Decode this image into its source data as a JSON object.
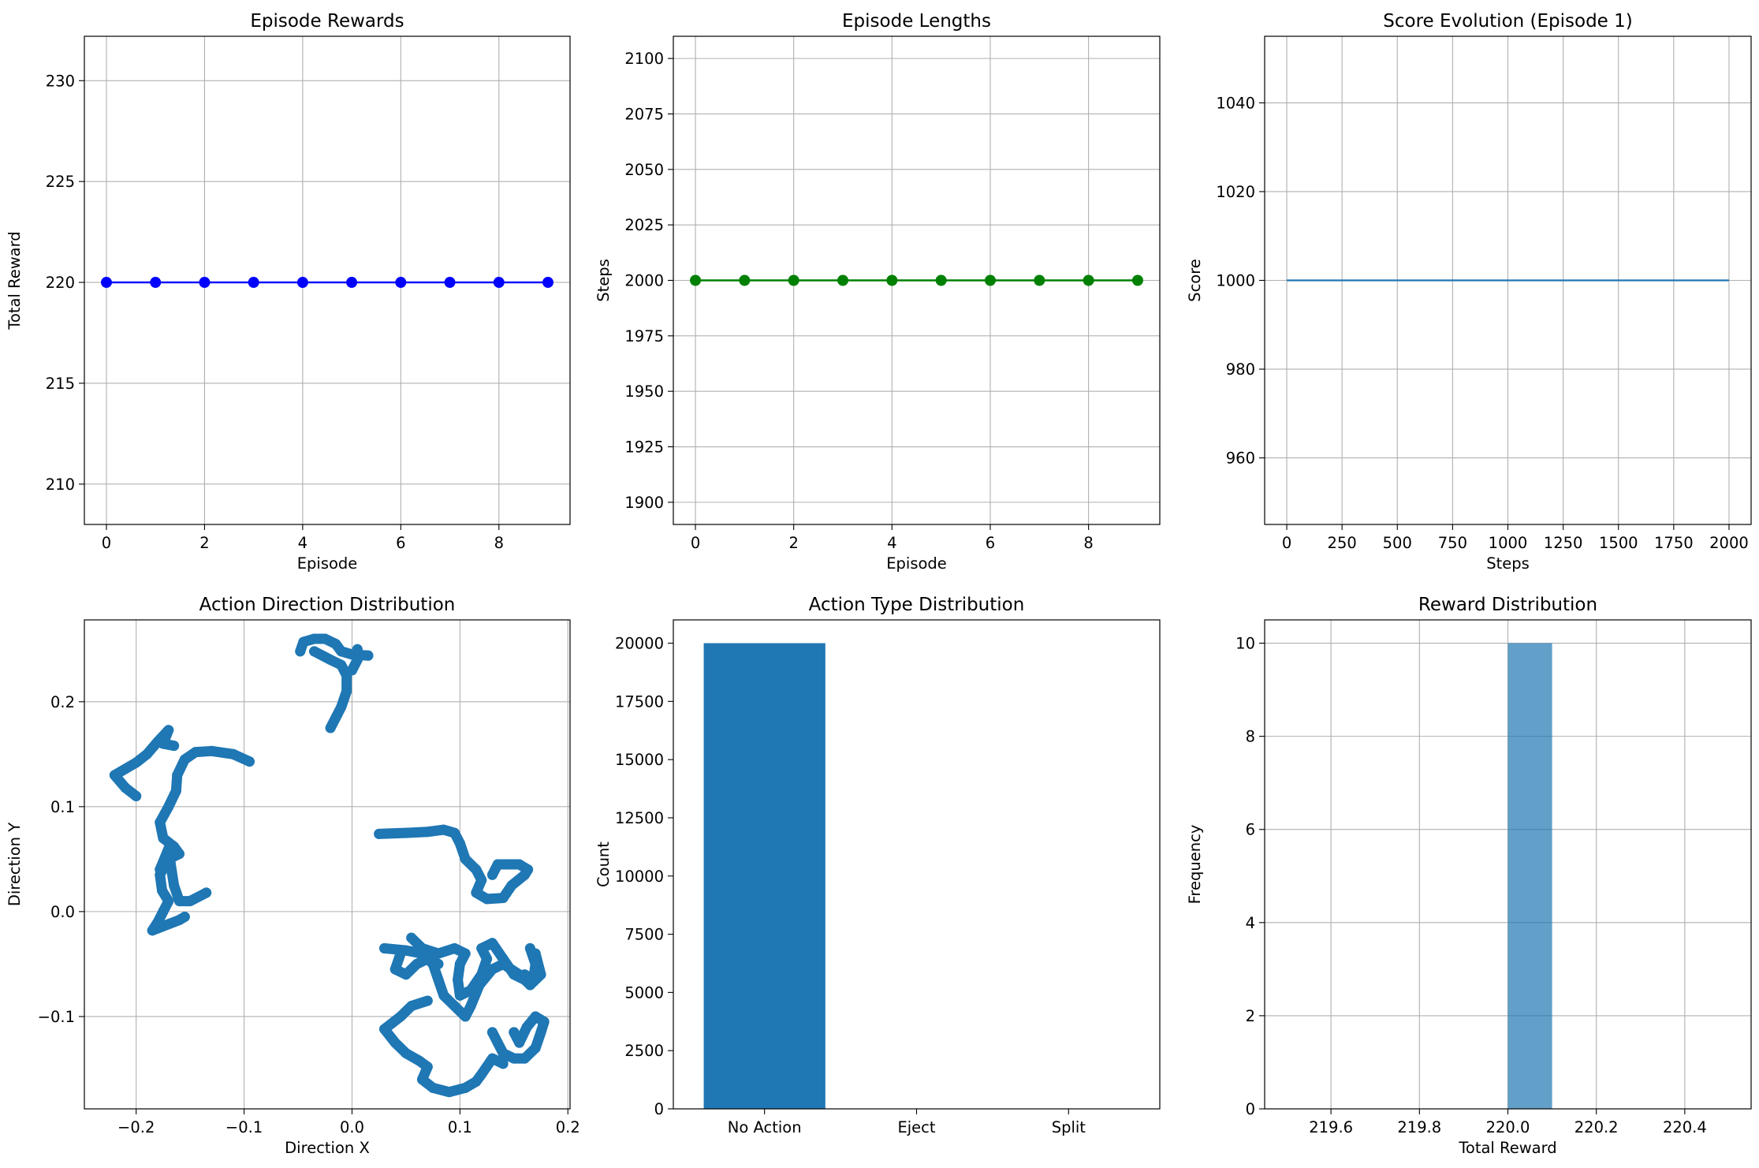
{
  "chart_data": [
    {
      "type": "line",
      "title": "Episode Rewards",
      "xlabel": "Episode",
      "ylabel": "Total Reward",
      "xlim": [
        -0.45,
        9.45
      ],
      "ylim": [
        208,
        232.2
      ],
      "xticks": [
        0,
        2,
        4,
        6,
        8
      ],
      "yticks": [
        210,
        215,
        220,
        225,
        230
      ],
      "grid": true,
      "color": "#0000ff",
      "marker": "circle",
      "x": [
        0,
        1,
        2,
        3,
        4,
        5,
        6,
        7,
        8,
        9
      ],
      "y": [
        220,
        220,
        220,
        220,
        220,
        220,
        220,
        220,
        220,
        220
      ]
    },
    {
      "type": "line",
      "title": "Episode Lengths",
      "xlabel": "Episode",
      "ylabel": "Steps",
      "xlim": [
        -0.45,
        9.45
      ],
      "ylim": [
        1890,
        2110
      ],
      "xticks": [
        0,
        2,
        4,
        6,
        8
      ],
      "yticks": [
        1900,
        1925,
        1950,
        1975,
        2000,
        2025,
        2050,
        2075,
        2100
      ],
      "grid": true,
      "color": "#008000",
      "marker": "circle",
      "x": [
        0,
        1,
        2,
        3,
        4,
        5,
        6,
        7,
        8,
        9
      ],
      "y": [
        2000,
        2000,
        2000,
        2000,
        2000,
        2000,
        2000,
        2000,
        2000,
        2000
      ]
    },
    {
      "type": "line",
      "title": "Score Evolution (Episode 1)",
      "xlabel": "Steps",
      "ylabel": "Score",
      "xlim": [
        -100,
        2100
      ],
      "ylim": [
        945,
        1055
      ],
      "xticks": [
        0,
        250,
        500,
        750,
        1000,
        1250,
        1500,
        1750,
        2000
      ],
      "yticks": [
        960,
        980,
        1000,
        1020,
        1040
      ],
      "grid": true,
      "color": "#1f77b4",
      "x": [
        0,
        2000
      ],
      "y": [
        1000,
        1000
      ]
    },
    {
      "type": "scatter",
      "title": "Action Direction Distribution",
      "xlabel": "Direction X",
      "ylabel": "Direction Y",
      "xlim": [
        -0.248,
        0.202
      ],
      "ylim": [
        -0.188,
        0.278
      ],
      "xticks": [
        -0.2,
        -0.1,
        0.0,
        0.1,
        0.2
      ],
      "yticks": [
        -0.1,
        0.0,
        0.1,
        0.2
      ],
      "tick_labels_x": [
        "−0.2",
        "−0.1",
        "0.0",
        "0.1",
        "0.2"
      ],
      "tick_labels_y": [
        "−0.1",
        "0.0",
        "0.1",
        "0.2"
      ],
      "grid": true,
      "color": "#1f77b4",
      "paths": [
        [
          [
            -0.2,
            0.11
          ],
          [
            -0.21,
            0.118
          ],
          [
            -0.22,
            0.13
          ],
          [
            -0.2,
            0.142
          ],
          [
            -0.19,
            0.15
          ],
          [
            -0.18,
            0.162
          ],
          [
            -0.17,
            0.173
          ],
          [
            -0.175,
            0.16
          ],
          [
            -0.165,
            0.158
          ]
        ],
        [
          [
            -0.095,
            0.143
          ],
          [
            -0.11,
            0.15
          ],
          [
            -0.13,
            0.153
          ],
          [
            -0.145,
            0.152
          ],
          [
            -0.155,
            0.145
          ],
          [
            -0.162,
            0.13
          ],
          [
            -0.163,
            0.115
          ],
          [
            -0.17,
            0.1
          ],
          [
            -0.178,
            0.085
          ],
          [
            -0.175,
            0.07
          ],
          [
            -0.165,
            0.062
          ],
          [
            -0.16,
            0.055
          ],
          [
            -0.17,
            0.05
          ],
          [
            -0.178,
            0.035
          ],
          [
            -0.176,
            0.02
          ],
          [
            -0.17,
            0.01
          ],
          [
            -0.175,
            0.0
          ],
          [
            -0.18,
            -0.01
          ],
          [
            -0.185,
            -0.018
          ],
          [
            -0.17,
            -0.012
          ],
          [
            -0.16,
            -0.008
          ],
          [
            -0.155,
            -0.005
          ]
        ],
        [
          [
            -0.178,
            0.04
          ],
          [
            -0.17,
            0.06
          ],
          [
            -0.168,
            0.045
          ],
          [
            -0.165,
            0.025
          ],
          [
            -0.16,
            0.01
          ],
          [
            -0.15,
            0.01
          ],
          [
            -0.135,
            0.018
          ]
        ],
        [
          [
            -0.048,
            0.248
          ],
          [
            -0.045,
            0.257
          ],
          [
            -0.035,
            0.26
          ],
          [
            -0.025,
            0.26
          ],
          [
            -0.015,
            0.255
          ],
          [
            -0.01,
            0.248
          ],
          [
            0.0,
            0.245
          ],
          [
            0.015,
            0.244
          ]
        ],
        [
          [
            -0.035,
            0.248
          ],
          [
            -0.02,
            0.24
          ],
          [
            -0.01,
            0.235
          ],
          [
            -0.005,
            0.225
          ],
          [
            -0.005,
            0.21
          ],
          [
            -0.01,
            0.195
          ],
          [
            -0.015,
            0.185
          ],
          [
            -0.02,
            0.175
          ]
        ],
        [
          [
            0.0,
            0.23
          ],
          [
            0.005,
            0.24
          ],
          [
            0.005,
            0.25
          ]
        ],
        [
          [
            0.025,
            0.074
          ],
          [
            0.05,
            0.075
          ],
          [
            0.07,
            0.076
          ],
          [
            0.085,
            0.078
          ],
          [
            0.095,
            0.075
          ],
          [
            0.1,
            0.065
          ],
          [
            0.105,
            0.05
          ],
          [
            0.115,
            0.04
          ],
          [
            0.12,
            0.03
          ],
          [
            0.115,
            0.018
          ],
          [
            0.125,
            0.012
          ],
          [
            0.14,
            0.013
          ],
          [
            0.148,
            0.025
          ],
          [
            0.16,
            0.035
          ],
          [
            0.163,
            0.04
          ],
          [
            0.155,
            0.045
          ],
          [
            0.135,
            0.045
          ],
          [
            0.13,
            0.035
          ]
        ],
        [
          [
            0.03,
            -0.035
          ],
          [
            0.05,
            -0.037
          ],
          [
            0.065,
            -0.04
          ],
          [
            0.075,
            -0.05
          ],
          [
            0.08,
            -0.065
          ],
          [
            0.085,
            -0.08
          ],
          [
            0.095,
            -0.09
          ],
          [
            0.105,
            -0.1
          ],
          [
            0.11,
            -0.09
          ],
          [
            0.118,
            -0.07
          ],
          [
            0.13,
            -0.055
          ],
          [
            0.14,
            -0.05
          ],
          [
            0.155,
            -0.06
          ],
          [
            0.165,
            -0.07
          ],
          [
            0.175,
            -0.06
          ],
          [
            0.17,
            -0.04
          ]
        ],
        [
          [
            0.055,
            -0.025
          ],
          [
            0.065,
            -0.035
          ],
          [
            0.08,
            -0.04
          ],
          [
            0.095,
            -0.035
          ],
          [
            0.105,
            -0.04
          ],
          [
            0.1,
            -0.05
          ],
          [
            0.098,
            -0.065
          ],
          [
            0.1,
            -0.08
          ],
          [
            0.11,
            -0.075
          ],
          [
            0.12,
            -0.06
          ],
          [
            0.125,
            -0.045
          ],
          [
            0.12,
            -0.035
          ],
          [
            0.13,
            -0.03
          ],
          [
            0.14,
            -0.045
          ],
          [
            0.15,
            -0.06
          ],
          [
            0.16,
            -0.065
          ]
        ],
        [
          [
            0.07,
            -0.085
          ],
          [
            0.055,
            -0.09
          ],
          [
            0.045,
            -0.1
          ],
          [
            0.03,
            -0.112
          ],
          [
            0.04,
            -0.125
          ],
          [
            0.05,
            -0.135
          ],
          [
            0.062,
            -0.142
          ],
          [
            0.07,
            -0.148
          ],
          [
            0.065,
            -0.16
          ],
          [
            0.075,
            -0.168
          ],
          [
            0.09,
            -0.172
          ],
          [
            0.105,
            -0.168
          ],
          [
            0.115,
            -0.162
          ],
          [
            0.12,
            -0.155
          ],
          [
            0.13,
            -0.14
          ],
          [
            0.14,
            -0.145
          ]
        ],
        [
          [
            0.045,
            -0.04
          ],
          [
            0.04,
            -0.055
          ],
          [
            0.05,
            -0.06
          ],
          [
            0.06,
            -0.05
          ],
          [
            0.07,
            -0.045
          ],
          [
            0.08,
            -0.05
          ]
        ],
        [
          [
            0.13,
            -0.115
          ],
          [
            0.135,
            -0.125
          ],
          [
            0.14,
            -0.135
          ],
          [
            0.15,
            -0.14
          ],
          [
            0.16,
            -0.14
          ],
          [
            0.17,
            -0.13
          ],
          [
            0.175,
            -0.115
          ],
          [
            0.178,
            -0.105
          ],
          [
            0.17,
            -0.1
          ],
          [
            0.162,
            -0.11
          ],
          [
            0.155,
            -0.125
          ],
          [
            0.15,
            -0.115
          ]
        ],
        [
          [
            0.165,
            -0.035
          ],
          [
            0.17,
            -0.05
          ],
          [
            0.168,
            -0.065
          ],
          [
            0.16,
            -0.06
          ]
        ]
      ]
    },
    {
      "type": "bar",
      "title": "Action Type Distribution",
      "xlabel": "",
      "ylabel": "Count",
      "categories": [
        "No Action",
        "Eject",
        "Split"
      ],
      "values": [
        20000,
        0,
        0
      ],
      "ylim": [
        0,
        21000
      ],
      "yticks": [
        0,
        2500,
        5000,
        7500,
        10000,
        12500,
        15000,
        17500,
        20000
      ],
      "grid": false,
      "color": "#1f77b4"
    },
    {
      "type": "bar",
      "title": "Reward Distribution",
      "xlabel": "Total Reward",
      "ylabel": "Frequency",
      "bins": [
        [
          220.0,
          220.1,
          10
        ]
      ],
      "xlim": [
        219.45,
        220.55
      ],
      "ylim": [
        0,
        10.5
      ],
      "xticks": [
        219.6,
        219.8,
        220.0,
        220.2,
        220.4
      ],
      "tick_labels_x": [
        "219.6",
        "219.8",
        "220.0",
        "220.2",
        "220.4"
      ],
      "yticks": [
        0,
        2,
        4,
        6,
        8,
        10
      ],
      "grid": true,
      "color": "#1f77b4",
      "alpha": 0.7
    }
  ]
}
